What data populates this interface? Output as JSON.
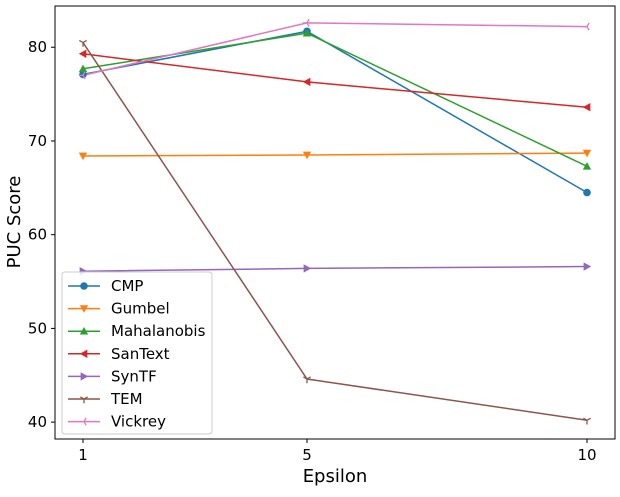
{
  "chart_data": {
    "type": "line",
    "title": "",
    "xlabel": "Epsilon",
    "ylabel": "PUC Score",
    "x": [
      1,
      5,
      10
    ],
    "x_tick_labels": [
      "1",
      "5",
      "10"
    ],
    "xlim": [
      0.5,
      10.5
    ],
    "ylim": [
      38.2,
      84.4
    ],
    "y_ticks": [
      40,
      50,
      60,
      70,
      80
    ],
    "y_tick_labels": [
      "40",
      "50",
      "60",
      "70",
      "80"
    ],
    "grid": false,
    "legend_position": "lower-left",
    "series": [
      {
        "name": "CMP",
        "values": [
          77.1,
          81.7,
          64.5
        ],
        "color": "#1f77b4",
        "marker": "circle"
      },
      {
        "name": "Gumbel",
        "values": [
          68.4,
          68.5,
          68.7
        ],
        "color": "#ff7f0e",
        "marker": "triangle-down"
      },
      {
        "name": "Mahalanobis",
        "values": [
          77.7,
          81.5,
          67.3
        ],
        "color": "#2ca02c",
        "marker": "triangle-up"
      },
      {
        "name": "SanText",
        "values": [
          79.3,
          76.3,
          73.6
        ],
        "color": "#d62728",
        "marker": "triangle-left"
      },
      {
        "name": "SynTF",
        "values": [
          56.1,
          56.4,
          56.6
        ],
        "color": "#9467bd",
        "marker": "triangle-right"
      },
      {
        "name": "TEM",
        "values": [
          80.5,
          44.6,
          40.2
        ],
        "color": "#8c564b",
        "marker": "tri-down"
      },
      {
        "name": "Vickrey",
        "values": [
          77.0,
          82.6,
          82.2
        ],
        "color": "#e377c2",
        "marker": "tri-left"
      }
    ]
  }
}
